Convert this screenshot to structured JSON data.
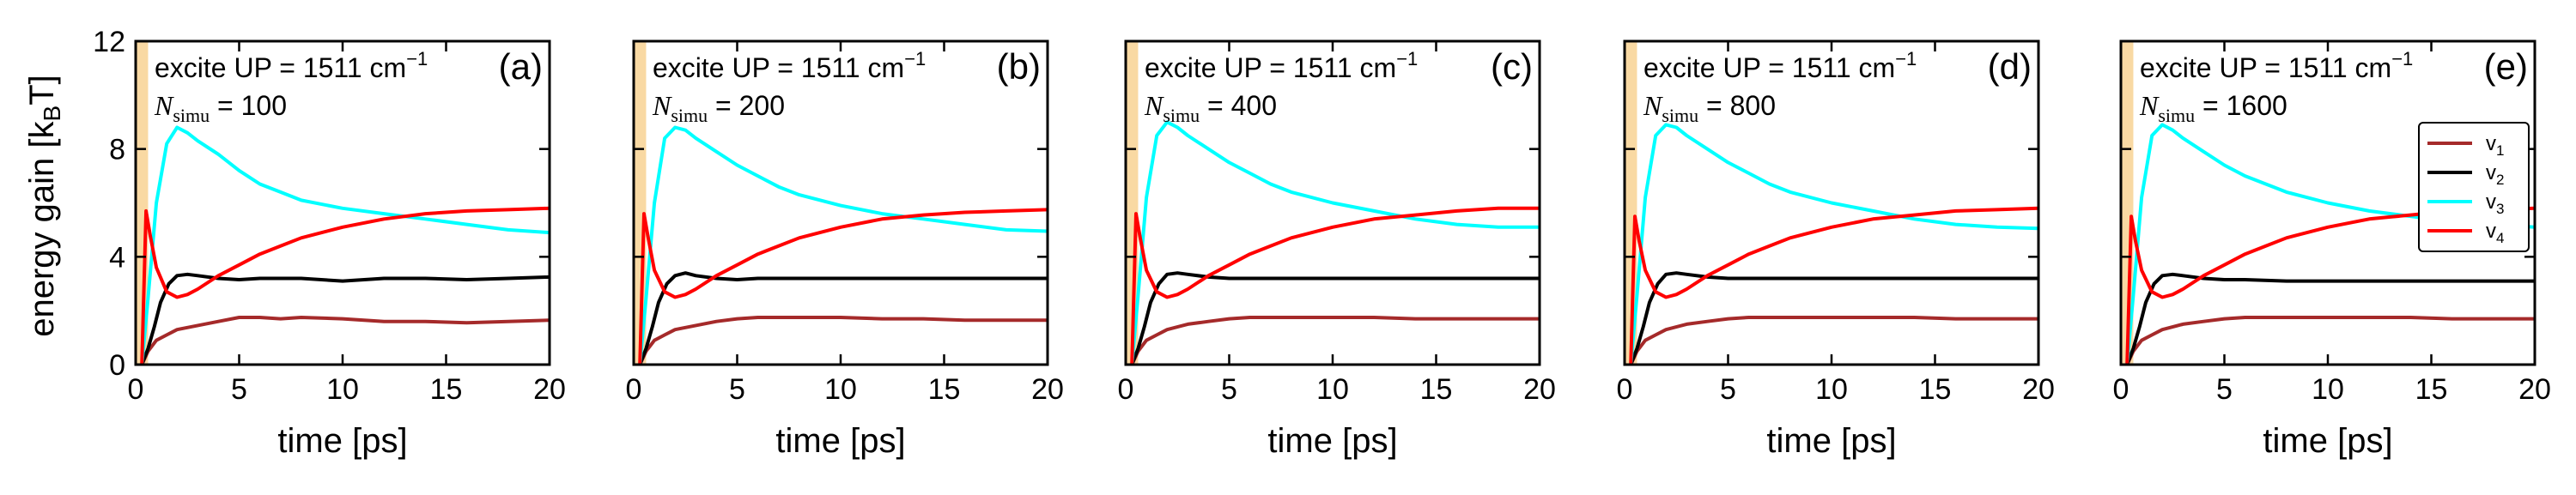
{
  "figure": {
    "ylabel": "energy gain [k",
    "ylabel_sub": "B",
    "ylabel_end": "T]",
    "xlabel": "time [ps]"
  },
  "chart_data": [
    {
      "type": "line",
      "panel": "(a)",
      "annotation": {
        "line1": "excite UP = 1511 cm",
        "sup": "−1",
        "nsim_label": "N",
        "nsim_sub": "simu",
        "nsim_value": " = 100"
      },
      "xlim": [
        0,
        20
      ],
      "ylim": [
        0,
        12
      ],
      "xticks": [
        "0",
        "5",
        "10",
        "15",
        "20"
      ],
      "yticks": [
        "0",
        "4",
        "8",
        "12"
      ],
      "excitation_window": [
        0,
        0.6
      ],
      "series": [
        {
          "name": "v1",
          "color": "#a52a2a",
          "x": [
            0.3,
            0.6,
            1,
            1.5,
            2,
            3,
            4,
            5,
            6,
            7,
            8,
            10,
            12,
            14,
            16,
            18,
            20
          ],
          "y": [
            0,
            0.5,
            0.9,
            1.1,
            1.3,
            1.45,
            1.6,
            1.75,
            1.75,
            1.7,
            1.75,
            1.7,
            1.6,
            1.6,
            1.55,
            1.6,
            1.65
          ]
        },
        {
          "name": "v2",
          "color": "#000000",
          "x": [
            0.3,
            0.6,
            0.9,
            1.2,
            1.6,
            2,
            2.5,
            3,
            4,
            5,
            6,
            8,
            10,
            12,
            14,
            16,
            18,
            20
          ],
          "y": [
            0,
            0.6,
            1.4,
            2.3,
            3.0,
            3.3,
            3.35,
            3.3,
            3.2,
            3.15,
            3.2,
            3.2,
            3.1,
            3.2,
            3.2,
            3.15,
            3.2,
            3.25
          ]
        },
        {
          "name": "v3",
          "color": "#00ffff",
          "x": [
            0.3,
            0.6,
            1,
            1.5,
            2,
            2.5,
            3,
            4,
            5,
            6,
            7,
            8,
            10,
            12,
            14,
            16,
            18,
            20
          ],
          "y": [
            0,
            2.5,
            6.0,
            8.2,
            8.8,
            8.6,
            8.3,
            7.8,
            7.2,
            6.7,
            6.4,
            6.1,
            5.8,
            5.6,
            5.4,
            5.2,
            5.0,
            4.9
          ]
        },
        {
          "name": "v4",
          "color": "#ff0000",
          "x": [
            0.3,
            0.5,
            0.7,
            1,
            1.5,
            2,
            2.5,
            3,
            4,
            5,
            6,
            7,
            8,
            10,
            12,
            14,
            16,
            18,
            20
          ],
          "y": [
            0,
            5.7,
            4.8,
            3.6,
            2.7,
            2.5,
            2.6,
            2.8,
            3.3,
            3.7,
            4.1,
            4.4,
            4.7,
            5.1,
            5.4,
            5.6,
            5.7,
            5.75,
            5.8
          ]
        }
      ]
    },
    {
      "type": "line",
      "panel": "(b)",
      "annotation": {
        "line1": "excite UP = 1511 cm",
        "sup": "−1",
        "nsim_label": "N",
        "nsim_sub": "simu",
        "nsim_value": " = 200"
      },
      "xlim": [
        0,
        20
      ],
      "ylim": [
        0,
        12
      ],
      "xticks": [
        "0",
        "5",
        "10",
        "15",
        "20"
      ],
      "yticks": [
        "0",
        "4",
        "8",
        "12"
      ],
      "excitation_window": [
        0,
        0.6
      ],
      "series": [
        {
          "name": "v1",
          "color": "#a52a2a",
          "x": [
            0.3,
            0.6,
            1,
            1.5,
            2,
            3,
            4,
            5,
            6,
            7,
            8,
            10,
            12,
            14,
            16,
            18,
            20
          ],
          "y": [
            0,
            0.5,
            0.9,
            1.1,
            1.3,
            1.45,
            1.6,
            1.7,
            1.75,
            1.75,
            1.75,
            1.75,
            1.7,
            1.7,
            1.65,
            1.65,
            1.65
          ]
        },
        {
          "name": "v2",
          "color": "#000000",
          "x": [
            0.3,
            0.6,
            0.9,
            1.2,
            1.6,
            2,
            2.5,
            3,
            4,
            5,
            6,
            8,
            10,
            12,
            14,
            16,
            18,
            20
          ],
          "y": [
            0,
            0.6,
            1.4,
            2.3,
            3.0,
            3.3,
            3.4,
            3.3,
            3.2,
            3.15,
            3.2,
            3.2,
            3.2,
            3.2,
            3.2,
            3.2,
            3.2,
            3.2
          ]
        },
        {
          "name": "v3",
          "color": "#00ffff",
          "x": [
            0.3,
            0.6,
            1,
            1.5,
            2,
            2.5,
            3,
            4,
            5,
            6,
            7,
            8,
            10,
            12,
            14,
            16,
            18,
            20
          ],
          "y": [
            0,
            2.5,
            6.0,
            8.4,
            8.8,
            8.7,
            8.4,
            7.9,
            7.4,
            7.0,
            6.6,
            6.3,
            5.9,
            5.6,
            5.4,
            5.2,
            5.0,
            4.95
          ]
        },
        {
          "name": "v4",
          "color": "#ff0000",
          "x": [
            0.3,
            0.5,
            0.7,
            1,
            1.5,
            2,
            2.5,
            3,
            4,
            5,
            6,
            7,
            8,
            10,
            12,
            14,
            16,
            18,
            20
          ],
          "y": [
            0,
            5.6,
            4.7,
            3.5,
            2.7,
            2.5,
            2.6,
            2.8,
            3.3,
            3.7,
            4.1,
            4.4,
            4.7,
            5.1,
            5.4,
            5.55,
            5.65,
            5.7,
            5.75
          ]
        }
      ]
    },
    {
      "type": "line",
      "panel": "(c)",
      "annotation": {
        "line1": "excite UP = 1511 cm",
        "sup": "−1",
        "nsim_label": "N",
        "nsim_sub": "simu",
        "nsim_value": " = 400"
      },
      "xlim": [
        0,
        20
      ],
      "ylim": [
        0,
        12
      ],
      "xticks": [
        "0",
        "5",
        "10",
        "15",
        "20"
      ],
      "yticks": [
        "0",
        "4",
        "8",
        "12"
      ],
      "excitation_window": [
        0,
        0.6
      ],
      "series": [
        {
          "name": "v1",
          "color": "#a52a2a",
          "x": [
            0.3,
            0.6,
            1,
            1.5,
            2,
            3,
            4,
            5,
            6,
            7,
            8,
            10,
            12,
            14,
            16,
            18,
            20
          ],
          "y": [
            0,
            0.5,
            0.9,
            1.1,
            1.3,
            1.5,
            1.6,
            1.7,
            1.75,
            1.75,
            1.75,
            1.75,
            1.75,
            1.7,
            1.7,
            1.7,
            1.7
          ]
        },
        {
          "name": "v2",
          "color": "#000000",
          "x": [
            0.3,
            0.6,
            0.9,
            1.2,
            1.6,
            2,
            2.5,
            3,
            4,
            5,
            6,
            8,
            10,
            12,
            14,
            16,
            18,
            20
          ],
          "y": [
            0,
            0.6,
            1.4,
            2.3,
            3.0,
            3.35,
            3.4,
            3.35,
            3.25,
            3.2,
            3.2,
            3.2,
            3.2,
            3.2,
            3.2,
            3.2,
            3.2,
            3.2
          ]
        },
        {
          "name": "v3",
          "color": "#00ffff",
          "x": [
            0.3,
            0.6,
            1,
            1.5,
            2,
            2.5,
            3,
            4,
            5,
            6,
            7,
            8,
            10,
            12,
            14,
            16,
            18,
            20
          ],
          "y": [
            0,
            2.6,
            6.2,
            8.5,
            9.0,
            8.8,
            8.5,
            8.0,
            7.5,
            7.1,
            6.7,
            6.4,
            6.0,
            5.7,
            5.4,
            5.2,
            5.1,
            5.1
          ]
        },
        {
          "name": "v4",
          "color": "#ff0000",
          "x": [
            0.3,
            0.5,
            0.7,
            1,
            1.5,
            2,
            2.5,
            3,
            4,
            5,
            6,
            7,
            8,
            10,
            12,
            14,
            16,
            18,
            20
          ],
          "y": [
            0,
            5.6,
            4.7,
            3.5,
            2.7,
            2.5,
            2.6,
            2.8,
            3.3,
            3.7,
            4.1,
            4.4,
            4.7,
            5.1,
            5.4,
            5.55,
            5.7,
            5.8,
            5.8
          ]
        }
      ]
    },
    {
      "type": "line",
      "panel": "(d)",
      "annotation": {
        "line1": "excite UP = 1511 cm",
        "sup": "−1",
        "nsim_label": "N",
        "nsim_sub": "simu",
        "nsim_value": " = 800"
      },
      "xlim": [
        0,
        20
      ],
      "ylim": [
        0,
        12
      ],
      "xticks": [
        "0",
        "5",
        "10",
        "15",
        "20"
      ],
      "yticks": [
        "0",
        "4",
        "8",
        "12"
      ],
      "excitation_window": [
        0,
        0.6
      ],
      "series": [
        {
          "name": "v1",
          "color": "#a52a2a",
          "x": [
            0.3,
            0.6,
            1,
            1.5,
            2,
            3,
            4,
            5,
            6,
            7,
            8,
            10,
            12,
            14,
            16,
            18,
            20
          ],
          "y": [
            0,
            0.5,
            0.9,
            1.1,
            1.3,
            1.5,
            1.6,
            1.7,
            1.75,
            1.75,
            1.75,
            1.75,
            1.75,
            1.75,
            1.7,
            1.7,
            1.7
          ]
        },
        {
          "name": "v2",
          "color": "#000000",
          "x": [
            0.3,
            0.6,
            0.9,
            1.2,
            1.6,
            2,
            2.5,
            3,
            4,
            5,
            6,
            8,
            10,
            12,
            14,
            16,
            18,
            20
          ],
          "y": [
            0,
            0.6,
            1.4,
            2.3,
            3.0,
            3.35,
            3.4,
            3.35,
            3.25,
            3.2,
            3.2,
            3.2,
            3.2,
            3.2,
            3.2,
            3.2,
            3.2,
            3.2
          ]
        },
        {
          "name": "v3",
          "color": "#00ffff",
          "x": [
            0.3,
            0.6,
            1,
            1.5,
            2,
            2.5,
            3,
            4,
            5,
            6,
            7,
            8,
            10,
            12,
            14,
            16,
            18,
            20
          ],
          "y": [
            0,
            2.6,
            6.2,
            8.5,
            8.9,
            8.8,
            8.5,
            8.0,
            7.5,
            7.1,
            6.7,
            6.4,
            6.0,
            5.7,
            5.4,
            5.2,
            5.1,
            5.05
          ]
        },
        {
          "name": "v4",
          "color": "#ff0000",
          "x": [
            0.3,
            0.5,
            0.7,
            1,
            1.5,
            2,
            2.5,
            3,
            4,
            5,
            6,
            7,
            8,
            10,
            12,
            14,
            16,
            18,
            20
          ],
          "y": [
            0,
            5.5,
            4.6,
            3.5,
            2.7,
            2.5,
            2.6,
            2.8,
            3.3,
            3.7,
            4.1,
            4.4,
            4.7,
            5.1,
            5.4,
            5.55,
            5.7,
            5.75,
            5.8
          ]
        }
      ]
    },
    {
      "type": "line",
      "panel": "(e)",
      "annotation": {
        "line1": "excite UP = 1511 cm",
        "sup": "−1",
        "nsim_label": "N",
        "nsim_sub": "simu",
        "nsim_value": " = 1600"
      },
      "xlim": [
        0,
        20
      ],
      "ylim": [
        0,
        12
      ],
      "xticks": [
        "0",
        "5",
        "10",
        "15",
        "20"
      ],
      "yticks": [
        "0",
        "4",
        "8",
        "12"
      ],
      "excitation_window": [
        0,
        0.6
      ],
      "legend": {
        "placement": "right",
        "entries": [
          {
            "label": "v",
            "sub": "1",
            "color": "#a52a2a"
          },
          {
            "label": "v",
            "sub": "2",
            "color": "#000000"
          },
          {
            "label": "v",
            "sub": "3",
            "color": "#00ffff"
          },
          {
            "label": "v",
            "sub": "4",
            "color": "#ff0000"
          }
        ]
      },
      "series": [
        {
          "name": "v1",
          "color": "#a52a2a",
          "x": [
            0.3,
            0.6,
            1,
            1.5,
            2,
            3,
            4,
            5,
            6,
            7,
            8,
            10,
            12,
            14,
            16,
            18,
            20
          ],
          "y": [
            0,
            0.5,
            0.9,
            1.1,
            1.3,
            1.5,
            1.6,
            1.7,
            1.75,
            1.75,
            1.75,
            1.75,
            1.75,
            1.75,
            1.7,
            1.7,
            1.7
          ]
        },
        {
          "name": "v2",
          "color": "#000000",
          "x": [
            0.3,
            0.6,
            0.9,
            1.2,
            1.6,
            2,
            2.5,
            3,
            4,
            5,
            6,
            8,
            10,
            12,
            14,
            16,
            18,
            20
          ],
          "y": [
            0,
            0.6,
            1.4,
            2.3,
            3.0,
            3.3,
            3.35,
            3.3,
            3.2,
            3.15,
            3.15,
            3.1,
            3.1,
            3.1,
            3.1,
            3.1,
            3.1,
            3.1
          ]
        },
        {
          "name": "v3",
          "color": "#00ffff",
          "x": [
            0.3,
            0.6,
            1,
            1.5,
            2,
            2.5,
            3,
            4,
            5,
            6,
            7,
            8,
            10,
            12,
            14,
            16,
            18,
            20
          ],
          "y": [
            0,
            2.6,
            6.2,
            8.5,
            8.9,
            8.7,
            8.4,
            7.9,
            7.4,
            7.0,
            6.7,
            6.4,
            6.0,
            5.7,
            5.5,
            5.3,
            5.2,
            5.1
          ]
        },
        {
          "name": "v4",
          "color": "#ff0000",
          "x": [
            0.3,
            0.5,
            0.7,
            1,
            1.5,
            2,
            2.5,
            3,
            4,
            5,
            6,
            7,
            8,
            10,
            12,
            14,
            16,
            18,
            20
          ],
          "y": [
            0,
            5.5,
            4.6,
            3.5,
            2.7,
            2.5,
            2.6,
            2.8,
            3.3,
            3.7,
            4.1,
            4.4,
            4.7,
            5.1,
            5.4,
            5.55,
            5.7,
            5.75,
            5.8
          ]
        }
      ]
    }
  ]
}
